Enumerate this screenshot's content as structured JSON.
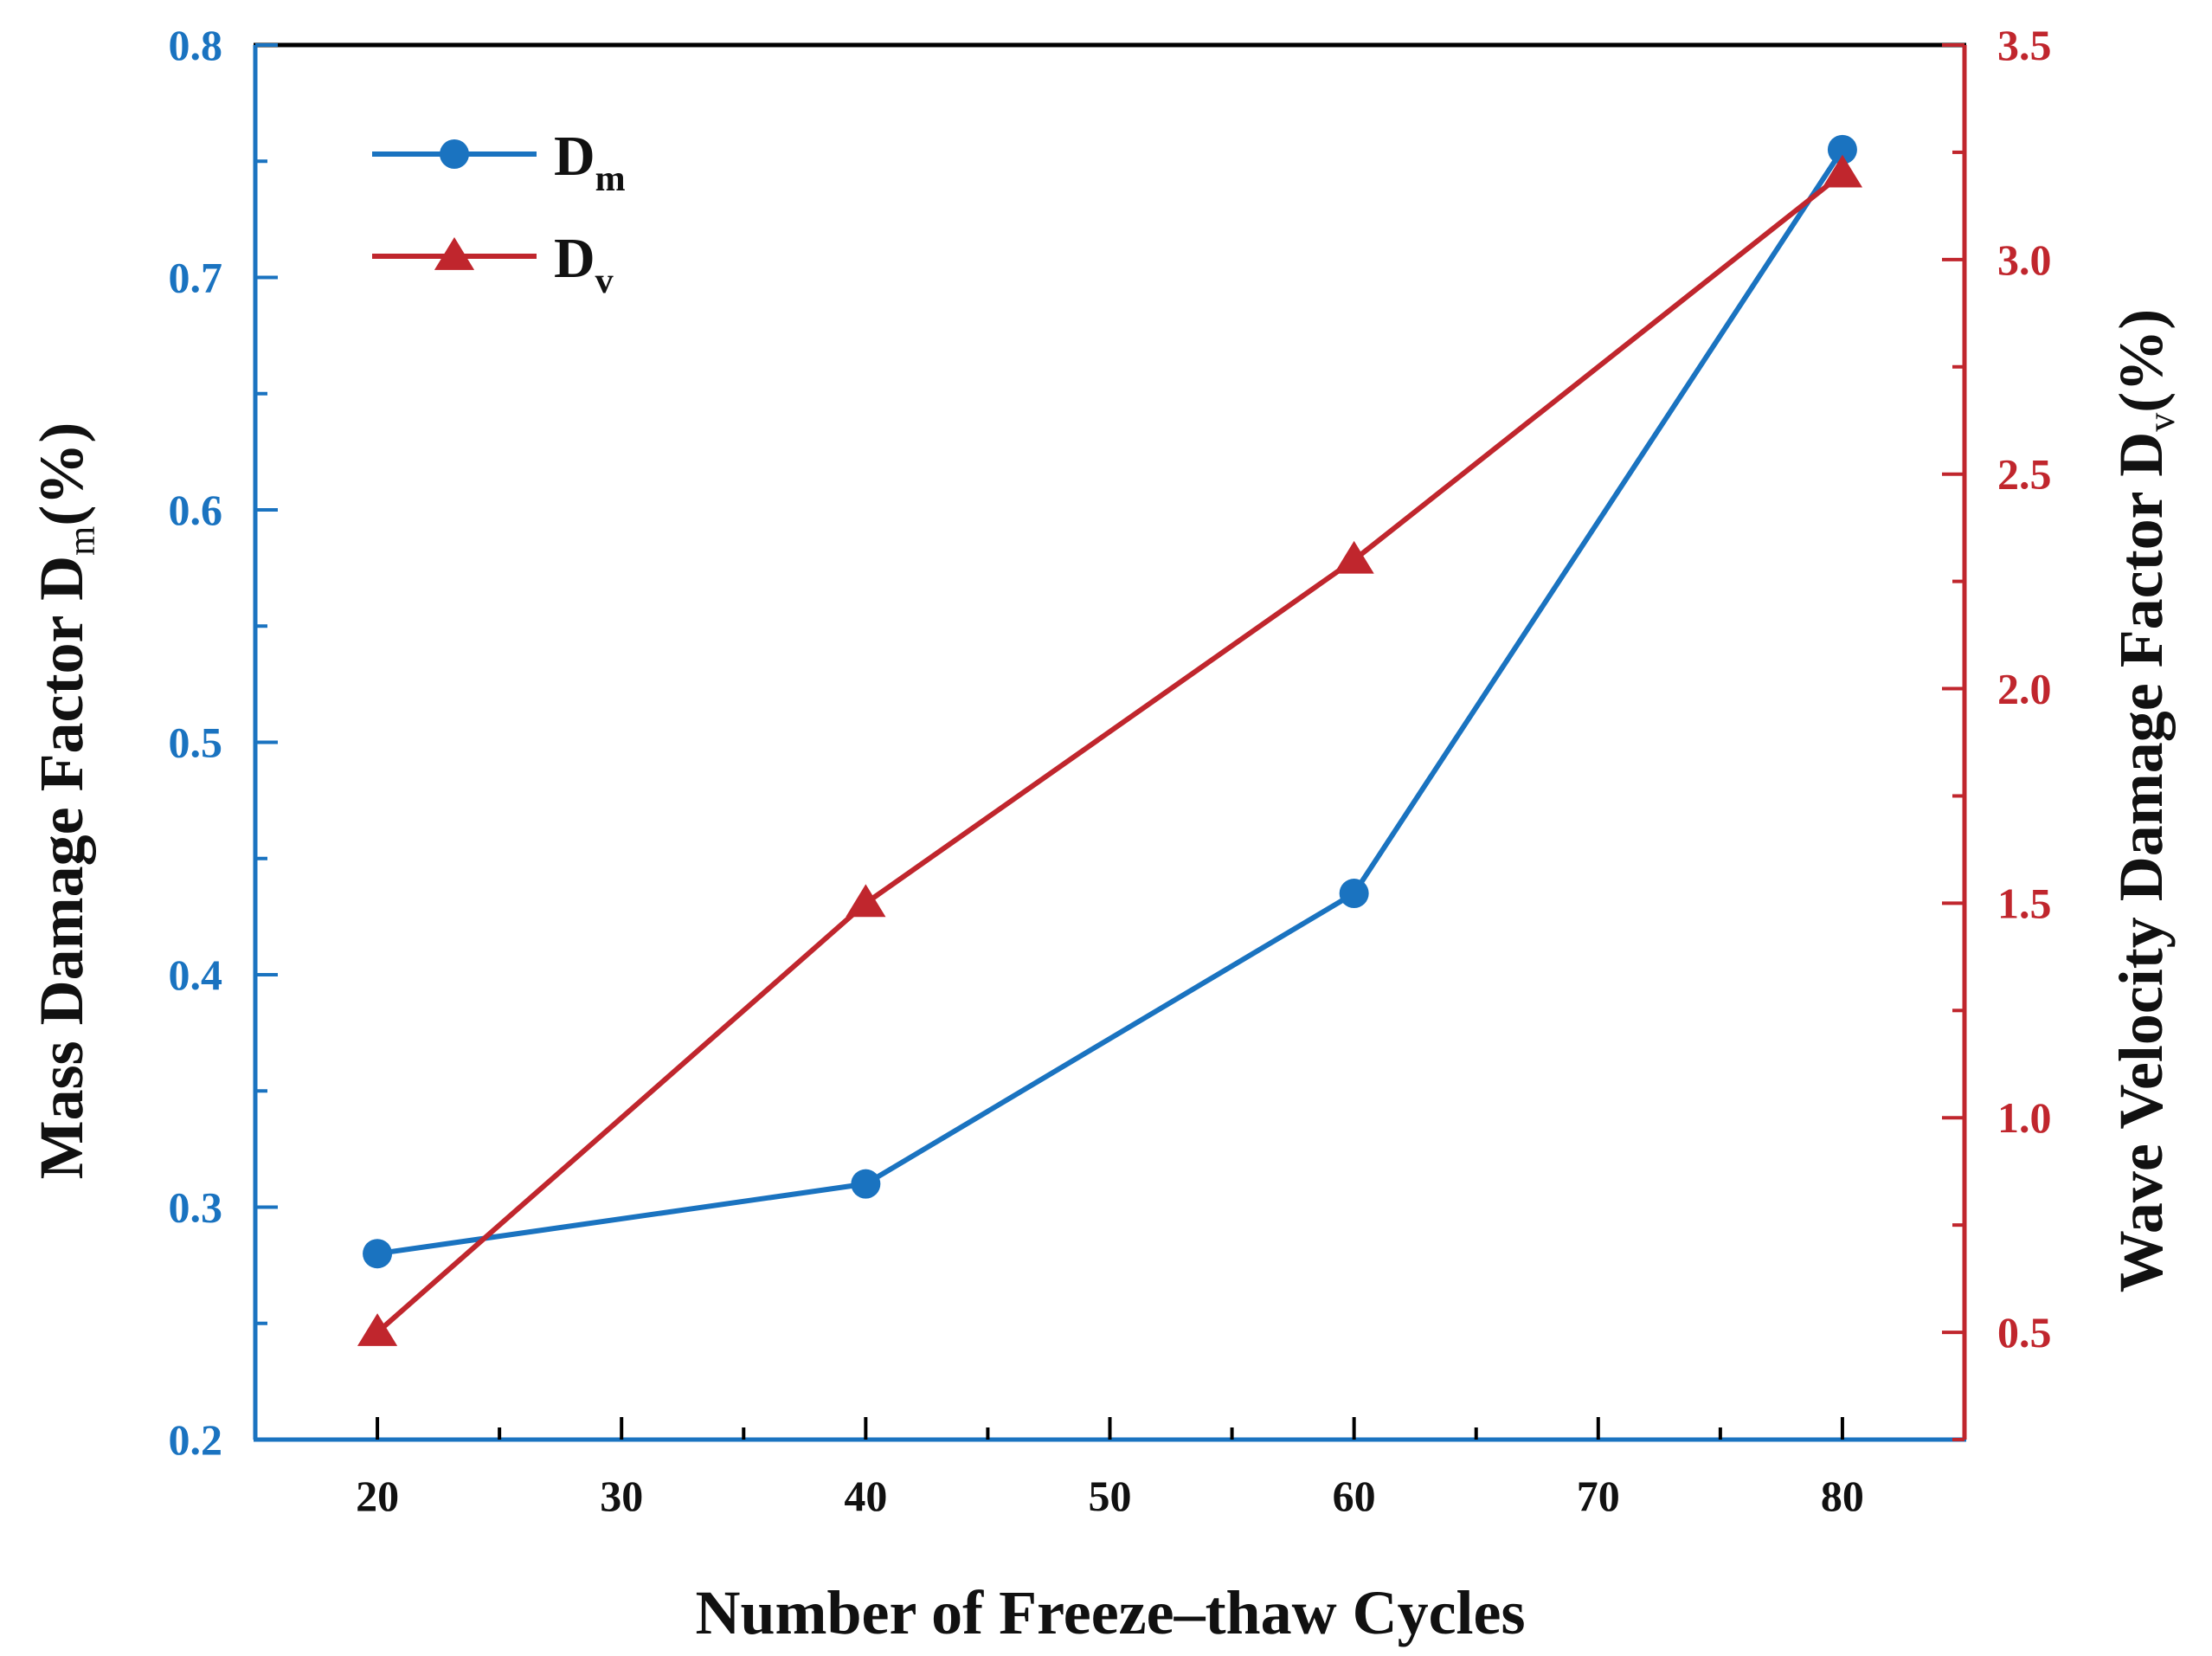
{
  "chart_data": {
    "type": "line",
    "title": "",
    "xlabel": "Number of Freeze–thaw Cycles",
    "x": [
      20,
      40,
      60,
      80
    ],
    "xlim": [
      15,
      85
    ],
    "xticks": [
      "20",
      "30",
      "40",
      "50",
      "60",
      "70",
      "80"
    ],
    "ylabel_left": {
      "main": "Mass Damage Factor D",
      "sub": "m",
      "tail": "(%)"
    },
    "ylabel_right": {
      "main": "Wave Velocity Damage Factor D",
      "sub": "v",
      "tail": "(%)"
    },
    "ylim_left": [
      0.2,
      0.8
    ],
    "ylim_right": [
      0.25,
      3.5
    ],
    "yticks_left": [
      "0.2",
      "0.3",
      "0.4",
      "0.5",
      "0.6",
      "0.7",
      "0.8"
    ],
    "yticks_right": [
      "0.5",
      "1.0",
      "1.5",
      "2.0",
      "2.5",
      "3.0",
      "3.5"
    ],
    "series": [
      {
        "name": "Dm",
        "label_main": "D",
        "label_sub": "m",
        "axis": "left",
        "marker": "circle",
        "color": "#1a73c0",
        "values": [
          0.28,
          0.31,
          0.435,
          0.755
        ]
      },
      {
        "name": "Dv",
        "label_main": "D",
        "label_sub": "v",
        "axis": "right",
        "marker": "triangle",
        "color": "#c0262d",
        "values": [
          0.5,
          1.5,
          2.3,
          3.2
        ]
      }
    ],
    "legend": "top-left",
    "grid": false,
    "colors": {
      "left_axis": "#1a73c0",
      "right_axis": "#c0262d",
      "frame": "#000000"
    }
  }
}
